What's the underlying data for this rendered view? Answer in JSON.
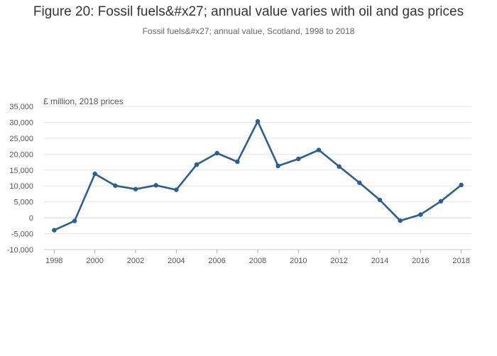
{
  "chart_data": {
    "type": "line",
    "title": "Figure 20: Fossil fuels&#x27; annual value varies with oil and gas prices",
    "subtitle": "Fossil fuels&#x27; annual value, Scotland, 1998 to 2018",
    "ylabel": "£ million, 2018 prices",
    "xlabel": "",
    "x": [
      1998,
      1999,
      2000,
      2001,
      2002,
      2003,
      2004,
      2005,
      2006,
      2007,
      2008,
      2009,
      2010,
      2011,
      2012,
      2013,
      2014,
      2015,
      2016,
      2017,
      2018
    ],
    "series": [
      {
        "name": "Fossil fuels annual value",
        "values": [
          -3900,
          -1000,
          13800,
          10100,
          9000,
          10200,
          8800,
          16700,
          20300,
          17600,
          30300,
          16300,
          18500,
          21300,
          16100,
          11000,
          5600,
          -900,
          1000,
          5200,
          10300
        ],
        "color": "#2b5f8e"
      }
    ],
    "xticks": [
      1998,
      2000,
      2002,
      2004,
      2006,
      2008,
      2010,
      2012,
      2014,
      2016,
      2018
    ],
    "yticks": [
      -10000,
      -5000,
      0,
      5000,
      10000,
      15000,
      20000,
      25000,
      30000,
      35000
    ],
    "ytick_labels": [
      "-10,000",
      "-5,000",
      "0",
      "5,000",
      "10,000",
      "15,000",
      "20,000",
      "25,000",
      "30,000",
      "35,000"
    ],
    "xlim": [
      1998,
      2018
    ],
    "ylim": [
      -10000,
      35000
    ],
    "grid": true
  }
}
